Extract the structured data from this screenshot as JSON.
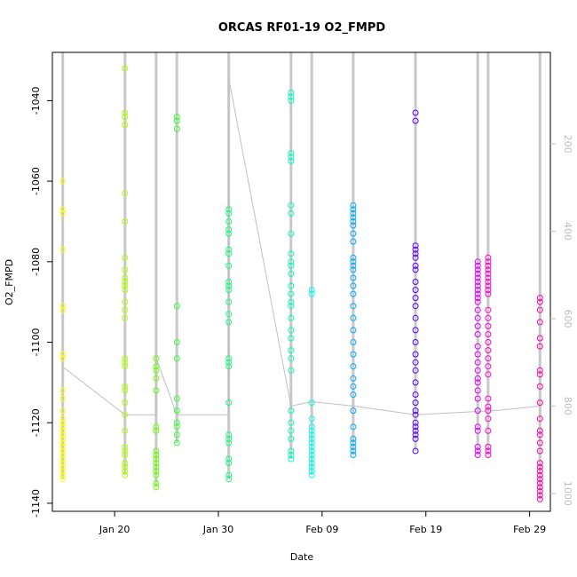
{
  "chart_data": {
    "type": "scatter",
    "title": "ORCAS RF01-19 O2_FMPD",
    "xlabel": "Date",
    "ylabel": "O2_FMPD",
    "x_ticks": [
      "Jan 20",
      "Jan 30",
      "Feb 09",
      "Feb 19",
      "Feb 29"
    ],
    "x_tick_dates": [
      "2016-01-20",
      "2016-01-30",
      "2016-02-09",
      "2016-02-19",
      "2016-02-29"
    ],
    "xlim": [
      "2016-01-14",
      "2016-03-02"
    ],
    "ylim": [
      -1142,
      -1028
    ],
    "y_ticks": [
      -1140,
      -1120,
      -1100,
      -1080,
      -1060,
      -1040
    ],
    "y2_ticks": [
      200,
      400,
      600,
      800,
      1000
    ],
    "y2lim": [
      -9.5,
      1041
    ],
    "secondary_line": {
      "color": "#c0c0c0",
      "points": [
        [
          "2016-01-15",
          710
        ],
        [
          "2016-01-21",
          820
        ],
        [
          "2016-01-24",
          820
        ],
        [
          "2016-01-24",
          690
        ],
        [
          "2016-01-26",
          820
        ],
        [
          "2016-01-31",
          820
        ],
        [
          "2016-01-31",
          50
        ],
        [
          "2016-02-06",
          800
        ],
        [
          "2016-02-08",
          790
        ],
        [
          "2016-02-12",
          800
        ],
        [
          "2016-02-18",
          820
        ],
        [
          "2016-02-26",
          810
        ],
        [
          "2016-03-01",
          800
        ]
      ]
    },
    "series": [
      {
        "date": "2016-01-15",
        "color": "#ffff00",
        "values": [
          -1134,
          -1133,
          -1132,
          -1131,
          -1130,
          -1129,
          -1128,
          -1127,
          -1126,
          -1125,
          -1124,
          -1123,
          -1122,
          -1121,
          -1120,
          -1119,
          -1117,
          -1114,
          -1112,
          -1104,
          -1103,
          -1092,
          -1091,
          -1077,
          -1068,
          -1067,
          -1060
        ]
      },
      {
        "date": "2016-01-21",
        "color": "#aaff00",
        "values": [
          -1133,
          -1132,
          -1131,
          -1130,
          -1128,
          -1127,
          -1126,
          -1122,
          -1118,
          -1115,
          -1112,
          -1111,
          -1106,
          -1105,
          -1104,
          -1094,
          -1092,
          -1090,
          -1087,
          -1086,
          -1085,
          -1084,
          -1082,
          -1079,
          -1070,
          -1063,
          -1046,
          -1044,
          -1043,
          -1032
        ]
      },
      {
        "date": "2016-01-24",
        "color": "#66ff00",
        "values": [
          -1136,
          -1135,
          -1133,
          -1132,
          -1131,
          -1130,
          -1129,
          -1128,
          -1127,
          -1122,
          -1121,
          -1112,
          -1109,
          -1107,
          -1106,
          -1104
        ]
      },
      {
        "date": "2016-01-26",
        "color": "#33ff33",
        "values": [
          -1125,
          -1123,
          -1121,
          -1120,
          -1117,
          -1114,
          -1104,
          -1100,
          -1091,
          -1047,
          -1045,
          -1044
        ]
      },
      {
        "date": "2016-01-31",
        "color": "#11ff77",
        "values": [
          -1134,
          -1133,
          -1130,
          -1129,
          -1125,
          -1124,
          -1123,
          -1115,
          -1106,
          -1105,
          -1104,
          -1095,
          -1093,
          -1090,
          -1087,
          -1086,
          -1085,
          -1081,
          -1078,
          -1077,
          -1073,
          -1072,
          -1070,
          -1068,
          -1067
        ]
      },
      {
        "date": "2016-02-06",
        "color": "#00ffbb",
        "values": [
          -1129,
          -1128,
          -1127,
          -1124,
          -1122,
          -1120,
          -1117,
          -1107,
          -1104,
          -1102,
          -1099,
          -1097,
          -1094,
          -1091,
          -1090,
          -1088,
          -1086,
          -1083,
          -1081,
          -1080,
          -1078,
          -1073,
          -1068,
          -1066,
          -1055,
          -1054,
          -1053,
          -1040,
          -1039,
          -1038
        ]
      },
      {
        "date": "2016-02-08",
        "color": "#00ffee",
        "values": [
          -1133,
          -1132,
          -1131,
          -1130,
          -1129,
          -1128,
          -1127,
          -1126,
          -1125,
          -1124,
          -1123,
          -1122,
          -1121,
          -1119,
          -1115,
          -1088,
          -1087
        ]
      },
      {
        "date": "2016-02-12",
        "color": "#00aaff",
        "values": [
          -1128,
          -1127,
          -1126,
          -1125,
          -1124,
          -1121,
          -1117,
          -1113,
          -1111,
          -1109,
          -1106,
          -1103,
          -1100,
          -1097,
          -1094,
          -1091,
          -1088,
          -1086,
          -1084,
          -1082,
          -1081,
          -1080,
          -1079,
          -1075,
          -1073,
          -1071,
          -1070,
          -1069,
          -1068,
          -1067,
          -1066
        ]
      },
      {
        "date": "2016-02-18",
        "color": "#5500ff",
        "values": [
          -1127,
          -1124,
          -1123,
          -1122,
          -1121,
          -1120,
          -1118,
          -1117,
          -1115,
          -1113,
          -1110,
          -1107,
          -1105,
          -1103,
          -1100,
          -1097,
          -1094,
          -1091,
          -1089,
          -1087,
          -1085,
          -1082,
          -1081,
          -1079,
          -1078,
          -1077,
          -1076,
          -1045,
          -1043
        ]
      },
      {
        "date": "2016-02-24",
        "color": "#dd00ff",
        "values": [
          -1128,
          -1127,
          -1126,
          -1122,
          -1121,
          -1117,
          -1114,
          -1112,
          -1110,
          -1109,
          -1107,
          -1105,
          -1103,
          -1101,
          -1098,
          -1096,
          -1094,
          -1092,
          -1090,
          -1089,
          -1088,
          -1087,
          -1086,
          -1085,
          -1084,
          -1083,
          -1082,
          -1081,
          -1080
        ]
      },
      {
        "date": "2016-02-25",
        "color": "#ff00cc",
        "values": [
          -1128,
          -1127,
          -1126,
          -1122,
          -1119,
          -1117,
          -1116,
          -1114,
          -1108,
          -1106,
          -1104,
          -1102,
          -1100,
          -1098,
          -1096,
          -1094,
          -1092,
          -1088,
          -1087,
          -1086,
          -1085,
          -1084,
          -1083,
          -1082,
          -1081,
          -1080,
          -1079
        ]
      },
      {
        "date": "2016-03-01",
        "color": "#ff00aa",
        "values": [
          -1139,
          -1138,
          -1137,
          -1136,
          -1135,
          -1134,
          -1133,
          -1132,
          -1131,
          -1130,
          -1127,
          -1125,
          -1123,
          -1122,
          -1119,
          -1115,
          -1111,
          -1108,
          -1107,
          -1101,
          -1099,
          -1095,
          -1092,
          -1090,
          -1089
        ]
      }
    ]
  }
}
